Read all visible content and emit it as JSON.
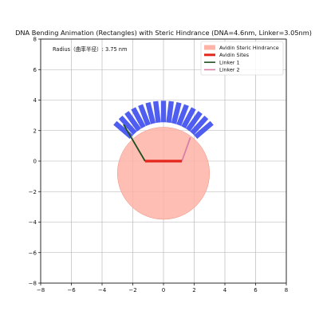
{
  "chart_data": {
    "type": "scatter",
    "title": "DNA Bending Animation (Rectangles) with Steric Hindrance (DNA=4.6nm, Linker=3.05nm)",
    "annotation": "Radius（曲率半径）: 3.75 nm",
    "xlim": [
      -8,
      8
    ],
    "ylim": [
      -8,
      8
    ],
    "grid": true,
    "xticks": [
      -8,
      -6,
      -4,
      -2,
      0,
      2,
      4,
      6,
      8
    ],
    "yticks": [
      -8,
      -6,
      -4,
      -2,
      0,
      2,
      4,
      6,
      8
    ],
    "legend_position": "top-right",
    "legend": [
      {
        "label": "Avidin Steric Hindrance",
        "color": "#ffb3a7",
        "kind": "patch"
      },
      {
        "label": "Avidin Sites",
        "color": "#e3261c",
        "kind": "thick-line"
      },
      {
        "label": "Linker 1",
        "color": "#1e4d1e",
        "kind": "line"
      },
      {
        "label": "Linker 2",
        "color": "#d97fa6",
        "kind": "line"
      }
    ],
    "steric_circle": {
      "center": [
        0,
        -0.8
      ],
      "radius": 3.0,
      "color": "#ffb3a7"
    },
    "avidin_sites": {
      "x": [
        -1.2,
        1.2
      ],
      "y": [
        0,
        0
      ],
      "color": "#e3261c"
    },
    "linker1": {
      "x": [
        -1.2,
        -2.6
      ],
      "y": [
        0,
        2.4
      ],
      "color": "#1e4d1e"
    },
    "linker2": {
      "x": [
        1.2,
        1.75
      ],
      "y": [
        0,
        1.55
      ],
      "color": "#d97fa6"
    },
    "dna_arc": {
      "center": [
        0,
        -0.2
      ],
      "radius_inner": 2.75,
      "radius_outer": 4.15,
      "angle_start_deg": 37,
      "angle_end_deg": 143,
      "segments": 15,
      "color": "#4050f0"
    }
  }
}
